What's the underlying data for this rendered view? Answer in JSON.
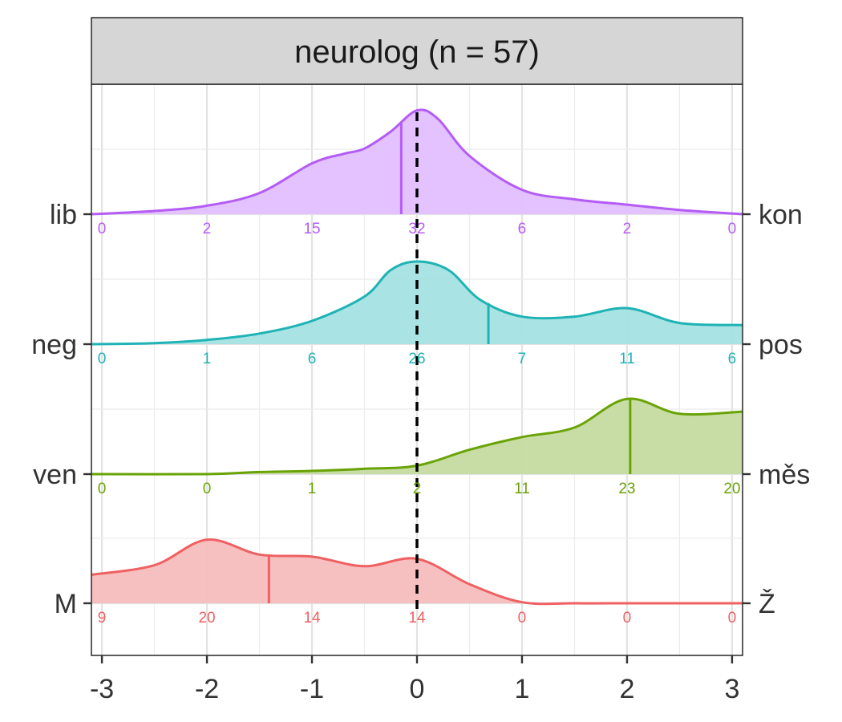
{
  "chart_data": {
    "type": "ridgeline",
    "facet_title": "neurolog (n = 57)",
    "x_ticks": [
      -3,
      -2,
      -1,
      0,
      1,
      2,
      3
    ],
    "xlim": [
      -3.1,
      3.1
    ],
    "grid": true,
    "reference_line": {
      "x": 0,
      "style": "dashed",
      "color": "#000000"
    },
    "rows": [
      {
        "left_label": "lib",
        "right_label": "kon",
        "color": "#b45cf5",
        "fill": "#e1bfff",
        "median_x": -0.15,
        "counts": [
          0,
          2,
          15,
          32,
          6,
          2,
          0
        ],
        "density": [
          [
            -3.1,
            0.0
          ],
          [
            -2.5,
            0.03
          ],
          [
            -2.0,
            0.08
          ],
          [
            -1.5,
            0.2
          ],
          [
            -1.0,
            0.48
          ],
          [
            -0.7,
            0.57
          ],
          [
            -0.5,
            0.62
          ],
          [
            -0.25,
            0.78
          ],
          [
            0.0,
            0.98
          ],
          [
            0.2,
            0.9
          ],
          [
            0.5,
            0.55
          ],
          [
            1.0,
            0.23
          ],
          [
            1.5,
            0.14
          ],
          [
            2.0,
            0.09
          ],
          [
            2.5,
            0.04
          ],
          [
            3.1,
            0.0
          ]
        ]
      },
      {
        "left_label": "neg",
        "right_label": "pos",
        "color": "#1fb3b5",
        "fill": "#a5e2e2",
        "median_x": 0.68,
        "counts": [
          0,
          1,
          6,
          26,
          7,
          11,
          6
        ],
        "density": [
          [
            -3.1,
            0.0
          ],
          [
            -2.5,
            0.01
          ],
          [
            -2.0,
            0.04
          ],
          [
            -1.5,
            0.1
          ],
          [
            -1.0,
            0.22
          ],
          [
            -0.5,
            0.45
          ],
          [
            -0.25,
            0.7
          ],
          [
            0.0,
            0.78
          ],
          [
            0.3,
            0.7
          ],
          [
            0.6,
            0.42
          ],
          [
            1.0,
            0.26
          ],
          [
            1.5,
            0.26
          ],
          [
            2.0,
            0.34
          ],
          [
            2.5,
            0.2
          ],
          [
            3.1,
            0.18
          ]
        ]
      },
      {
        "left_label": "ven",
        "right_label": "měs",
        "color": "#6aa306",
        "fill": "#c5dba0",
        "median_x": 2.03,
        "counts": [
          0,
          0,
          1,
          2,
          11,
          23,
          20
        ],
        "density": [
          [
            -3.1,
            0.0
          ],
          [
            -2.0,
            0.0
          ],
          [
            -1.5,
            0.02
          ],
          [
            -1.0,
            0.03
          ],
          [
            -0.5,
            0.05
          ],
          [
            0.0,
            0.08
          ],
          [
            0.5,
            0.23
          ],
          [
            1.0,
            0.35
          ],
          [
            1.5,
            0.44
          ],
          [
            2.0,
            0.71
          ],
          [
            2.5,
            0.57
          ],
          [
            3.1,
            0.59
          ]
        ]
      },
      {
        "left_label": "M",
        "right_label": "Ž",
        "color": "#ef6062",
        "fill": "#f7bdbd",
        "median_x": -1.41,
        "counts": [
          9,
          20,
          14,
          14,
          0,
          0,
          0
        ],
        "density": [
          [
            -3.1,
            0.27
          ],
          [
            -2.5,
            0.36
          ],
          [
            -2.0,
            0.6
          ],
          [
            -1.5,
            0.46
          ],
          [
            -1.0,
            0.44
          ],
          [
            -0.5,
            0.35
          ],
          [
            0.0,
            0.42
          ],
          [
            0.5,
            0.18
          ],
          [
            1.0,
            0.01
          ],
          [
            1.5,
            0.0
          ],
          [
            2.0,
            0.0
          ],
          [
            3.1,
            0.0
          ]
        ]
      }
    ]
  }
}
